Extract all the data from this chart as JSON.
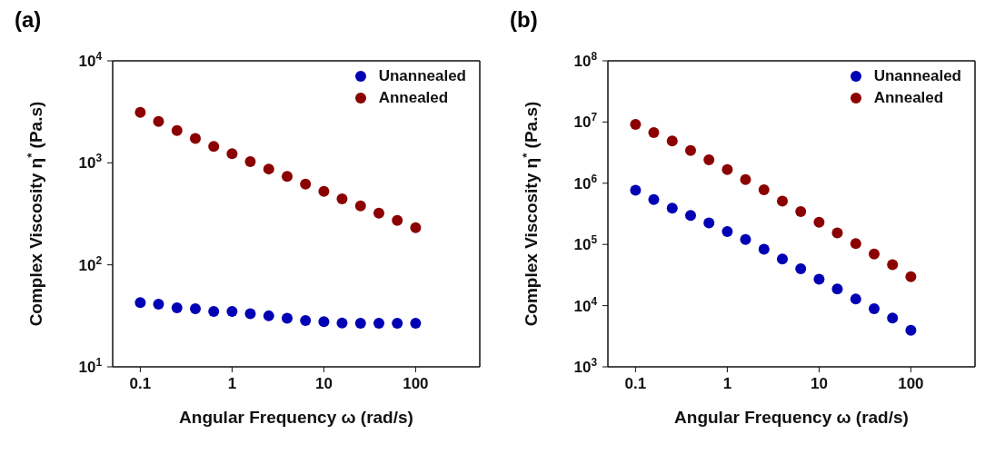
{
  "chart_data": [
    {
      "type": "scatter",
      "title": "(a)",
      "xlabel": "Angular Frequency ω (rad/s)",
      "ylabel": "Complex Viscosity η$^{*}$ (Pa.s)",
      "log": "xy",
      "grid": false,
      "legend": "top right",
      "marker": "circle",
      "xlim": [
        0.05,
        500
      ],
      "xticks": [
        0.1,
        1,
        10,
        100
      ],
      "ylim": [
        10,
        10000
      ],
      "yticks": [
        {
          "value": 10,
          "label": "10$^{1}$"
        },
        {
          "value": 100,
          "label": "10$^{2}$"
        },
        {
          "value": 1000,
          "label": "10$^{3}$"
        },
        {
          "value": 10000,
          "label": "10$^{4}$"
        }
      ],
      "x": [
        0.1,
        0.158,
        0.251,
        0.398,
        0.631,
        1,
        1.58,
        2.51,
        3.98,
        6.31,
        10,
        15.8,
        25.1,
        39.8,
        63.1,
        100
      ],
      "series": [
        {
          "name": "Unannealed",
          "color": "#0000b4",
          "values": [
            42.6,
            41.2,
            37.9,
            37.2,
            35.0,
            35.0,
            33.2,
            31.6,
            30.0,
            28.4,
            27.7,
            26.9,
            26.7,
            26.7,
            26.7,
            26.7
          ]
        },
        {
          "name": "Annealed",
          "color": "#8b0000",
          "values": [
            3130,
            2550,
            2070,
            1730,
            1450,
            1230,
            1030,
            870,
            736,
            618,
            526,
            444,
            378,
            321,
            273,
            231
          ]
        }
      ]
    },
    {
      "type": "scatter",
      "title": "(b)",
      "xlabel": "Angular Frequency ω (rad/s)",
      "ylabel": "Complex Viscosity η$^{*}$ (Pa.s)",
      "log": "xy",
      "grid": false,
      "legend": "top right",
      "marker": "circle",
      "xlim": [
        0.05,
        500
      ],
      "xticks": [
        0.1,
        1,
        10,
        100
      ],
      "ylim": [
        1000,
        100000000
      ],
      "yticks": [
        {
          "value": 1000,
          "label": "10$^{3}$"
        },
        {
          "value": 10000,
          "label": "10$^{4}$"
        },
        {
          "value": 100000,
          "label": "10$^{5}$"
        },
        {
          "value": 1000000,
          "label": "10$^{6}$"
        },
        {
          "value": 10000000,
          "label": "10$^{7}$"
        },
        {
          "value": 100000000,
          "label": "10$^{8}$"
        }
      ],
      "x": [
        0.1,
        0.158,
        0.251,
        0.398,
        0.631,
        1,
        1.58,
        2.51,
        3.98,
        6.31,
        10,
        15.8,
        25.1,
        39.8,
        63.1,
        100
      ],
      "series": [
        {
          "name": "Unannealed",
          "color": "#0000b4",
          "values": [
            770000,
            542000,
            390000,
            297000,
            224000,
            163000,
            120000,
            83400,
            58000,
            39900,
            27100,
            18700,
            12800,
            8930,
            6280,
            3940
          ]
        },
        {
          "name": "Annealed",
          "color": "#8b0000",
          "values": [
            9140000,
            6730000,
            4890000,
            3440000,
            2420000,
            1670000,
            1150000,
            780000,
            512000,
            344000,
            231000,
            154000,
            103000,
            69500,
            46800,
            29700
          ]
        }
      ]
    }
  ]
}
